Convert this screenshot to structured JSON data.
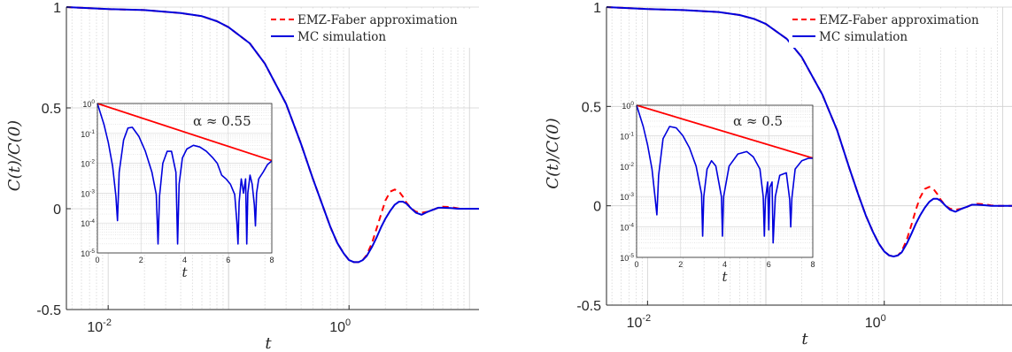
{
  "chart_data": [
    {
      "type": "line",
      "title": "",
      "xlabel": "t",
      "ylabel": "C(t)/C(0)",
      "xscale": "log",
      "xlim": [
        0.0045,
        12
      ],
      "ylim": [
        -0.5,
        1
      ],
      "x_ticks": [
        0.01,
        1
      ],
      "x_tick_labels": [
        "10",
        "-2",
        "10",
        "0"
      ],
      "y_ticks": [
        -0.5,
        0,
        0.5,
        1
      ],
      "y_tick_labels": [
        "-0.5",
        "0",
        "0.5",
        "1"
      ],
      "grid": true,
      "legend_position": "top-right",
      "series": [
        {
          "name": "EMZ-Faber approximation",
          "color": "#ff0000",
          "style": "dashed",
          "x": [
            0.0045,
            0.01,
            0.02,
            0.04,
            0.06,
            0.08,
            0.1,
            0.15,
            0.2,
            0.3,
            0.4,
            0.5,
            0.6,
            0.7,
            0.8,
            0.9,
            1.0,
            1.1,
            1.2,
            1.3,
            1.4,
            1.55,
            1.7,
            1.85,
            2.0,
            2.2,
            2.4,
            2.6,
            2.8,
            3.0,
            3.3,
            3.6,
            4.0,
            4.5,
            5.0,
            5.5,
            6.0,
            7.0,
            8.0,
            9.0,
            10.0,
            12.0
          ],
          "values": [
            1.0,
            0.99,
            0.985,
            0.97,
            0.955,
            0.93,
            0.9,
            0.82,
            0.72,
            0.52,
            0.32,
            0.15,
            0.02,
            -0.09,
            -0.17,
            -0.22,
            -0.255,
            -0.265,
            -0.265,
            -0.255,
            -0.23,
            -0.17,
            -0.095,
            -0.025,
            0.04,
            0.085,
            0.095,
            0.085,
            0.06,
            0.03,
            0.0,
            -0.015,
            -0.02,
            -0.015,
            -0.005,
            0.005,
            0.01,
            0.008,
            0.002,
            0.0,
            0.0,
            0.0
          ]
        },
        {
          "name": "MC simulation",
          "color": "#0000dd",
          "style": "solid",
          "x": [
            0.0045,
            0.01,
            0.02,
            0.04,
            0.06,
            0.08,
            0.1,
            0.15,
            0.2,
            0.3,
            0.4,
            0.5,
            0.6,
            0.7,
            0.8,
            0.9,
            1.0,
            1.1,
            1.2,
            1.3,
            1.4,
            1.55,
            1.7,
            1.85,
            2.0,
            2.2,
            2.4,
            2.6,
            2.8,
            3.0,
            3.3,
            3.6,
            4.0,
            4.5,
            5.0,
            5.5,
            6.0,
            7.0,
            8.0,
            9.0,
            10.0,
            12.0
          ],
          "values": [
            1.0,
            0.99,
            0.985,
            0.97,
            0.955,
            0.93,
            0.9,
            0.82,
            0.72,
            0.52,
            0.32,
            0.15,
            0.02,
            -0.09,
            -0.17,
            -0.22,
            -0.255,
            -0.265,
            -0.265,
            -0.255,
            -0.235,
            -0.19,
            -0.14,
            -0.09,
            -0.05,
            -0.01,
            0.02,
            0.035,
            0.035,
            0.025,
            0.0,
            -0.02,
            -0.03,
            -0.015,
            -0.005,
            0.005,
            0.005,
            0.003,
            0.0,
            0.0,
            0.0,
            0.0
          ]
        }
      ],
      "inset": {
        "type": "line",
        "xlabel": "t",
        "yscale": "log",
        "xlim": [
          0,
          8
        ],
        "ylim": [
          1e-05,
          1
        ],
        "x_ticks": [
          0,
          2,
          4,
          6,
          8
        ],
        "x_tick_labels": [
          "0",
          "2",
          "4",
          "6",
          "8"
        ],
        "y_ticks": [
          1e-05,
          0.0001,
          0.001,
          0.01,
          0.1,
          1
        ],
        "y_tick_labels": [
          [
            "10",
            "-5"
          ],
          [
            "10",
            "-4"
          ],
          [
            "10",
            "-3"
          ],
          [
            "10",
            "-2"
          ],
          [
            "10",
            "-1"
          ],
          [
            "10",
            "0"
          ]
        ],
        "annotation": "α ≈ 0.55",
        "fit_line": {
          "color": "#ff0000",
          "x": [
            0,
            8
          ],
          "values": [
            1.0,
            0.0123
          ]
        },
        "series": {
          "color": "#0000dd",
          "x": [
            0,
            0.3,
            0.5,
            0.7,
            0.85,
            0.92,
            1.0,
            1.2,
            1.4,
            1.6,
            1.9,
            2.2,
            2.5,
            2.7,
            2.78,
            2.85,
            3.0,
            3.2,
            3.4,
            3.6,
            3.68,
            3.75,
            3.9,
            4.1,
            4.4,
            4.7,
            5.0,
            5.3,
            5.5,
            5.7,
            5.9,
            6.1,
            6.3,
            6.4,
            6.45,
            6.5,
            6.6,
            6.7,
            6.8,
            6.85,
            6.9,
            7.0,
            7.1,
            7.2,
            7.25,
            7.3,
            7.4,
            7.6,
            7.8,
            8.0
          ],
          "values": [
            1.0,
            0.2,
            0.05,
            0.008,
            0.0008,
            0.00012,
            0.005,
            0.06,
            0.15,
            0.16,
            0.08,
            0.025,
            0.005,
            0.0009,
            2e-05,
            0.0008,
            0.01,
            0.025,
            0.025,
            0.005,
            2e-05,
            0.002,
            0.015,
            0.03,
            0.04,
            0.035,
            0.025,
            0.015,
            0.01,
            0.004,
            0.003,
            0.002,
            0.0009,
            0.0001,
            2e-05,
            0.0005,
            0.003,
            0.001,
            0.003,
            2e-05,
            0.001,
            0.004,
            0.002,
            0.0004,
            8e-05,
            0.001,
            0.003,
            0.005,
            0.009,
            0.012
          ]
        }
      }
    },
    {
      "type": "line",
      "title": "",
      "xlabel": "t",
      "ylabel": "C(t)/C(0)",
      "xscale": "log",
      "xlim": [
        0.0045,
        12
      ],
      "ylim": [
        -0.5,
        1
      ],
      "x_ticks": [
        0.01,
        1
      ],
      "x_tick_labels": [
        "10",
        "-2",
        "10",
        "0"
      ],
      "y_ticks": [
        -0.5,
        0,
        0.5,
        1
      ],
      "y_tick_labels": [
        "-0.5",
        "0",
        "0.5",
        "1"
      ],
      "grid": true,
      "legend_position": "top-right",
      "series": [
        {
          "name": "EMZ-Faber approximation",
          "color": "#ff0000",
          "style": "dashed",
          "x": [
            0.0045,
            0.01,
            0.02,
            0.04,
            0.06,
            0.08,
            0.1,
            0.15,
            0.2,
            0.3,
            0.4,
            0.5,
            0.6,
            0.7,
            0.8,
            0.9,
            1.0,
            1.1,
            1.2,
            1.3,
            1.4,
            1.55,
            1.7,
            1.85,
            2.0,
            2.2,
            2.4,
            2.6,
            2.8,
            3.0,
            3.3,
            3.6,
            4.0,
            4.5,
            5.0,
            5.5,
            6.0,
            7.0,
            8.0,
            9.0,
            10.0,
            12.0
          ],
          "values": [
            1.0,
            0.99,
            0.985,
            0.975,
            0.96,
            0.94,
            0.915,
            0.84,
            0.75,
            0.56,
            0.38,
            0.2,
            0.06,
            -0.05,
            -0.13,
            -0.19,
            -0.23,
            -0.25,
            -0.255,
            -0.25,
            -0.23,
            -0.17,
            -0.095,
            -0.02,
            0.04,
            0.085,
            0.095,
            0.085,
            0.06,
            0.03,
            0.0,
            -0.015,
            -0.02,
            -0.015,
            -0.005,
            0.005,
            0.01,
            0.008,
            0.002,
            0.0,
            0.0,
            0.0
          ]
        },
        {
          "name": "MC simulation",
          "color": "#0000dd",
          "style": "solid",
          "x": [
            0.0045,
            0.01,
            0.02,
            0.04,
            0.06,
            0.08,
            0.1,
            0.15,
            0.2,
            0.3,
            0.4,
            0.5,
            0.6,
            0.7,
            0.8,
            0.9,
            1.0,
            1.1,
            1.2,
            1.3,
            1.4,
            1.55,
            1.7,
            1.85,
            2.0,
            2.2,
            2.4,
            2.6,
            2.8,
            3.0,
            3.3,
            3.6,
            4.0,
            4.5,
            5.0,
            5.5,
            6.0,
            7.0,
            8.0,
            9.0,
            10.0,
            12.0
          ],
          "values": [
            1.0,
            0.99,
            0.985,
            0.975,
            0.96,
            0.94,
            0.915,
            0.84,
            0.75,
            0.56,
            0.38,
            0.2,
            0.06,
            -0.05,
            -0.13,
            -0.19,
            -0.23,
            -0.25,
            -0.255,
            -0.25,
            -0.235,
            -0.19,
            -0.14,
            -0.09,
            -0.05,
            -0.01,
            0.02,
            0.035,
            0.035,
            0.025,
            0.0,
            -0.02,
            -0.03,
            -0.015,
            -0.005,
            0.005,
            0.005,
            0.003,
            0.0,
            0.0,
            0.0,
            0.0
          ]
        }
      ],
      "inset": {
        "type": "line",
        "xlabel": "t",
        "yscale": "log",
        "xlim": [
          0,
          8
        ],
        "ylim": [
          1e-05,
          1
        ],
        "x_ticks": [
          0,
          2,
          4,
          6,
          8
        ],
        "x_tick_labels": [
          "0",
          "2",
          "4",
          "6",
          "8"
        ],
        "y_ticks": [
          1e-05,
          0.0001,
          0.001,
          0.01,
          0.1,
          1
        ],
        "y_tick_labels": [
          [
            "10",
            "-5"
          ],
          [
            "10",
            "-4"
          ],
          [
            "10",
            "-3"
          ],
          [
            "10",
            "-2"
          ],
          [
            "10",
            "-1"
          ],
          [
            "10",
            "0"
          ]
        ],
        "annotation": "α ≈ 0.5",
        "fit_line": {
          "color": "#ff0000",
          "x": [
            0,
            8
          ],
          "values": [
            1.0,
            0.0183
          ]
        },
        "series": {
          "color": "#0000dd",
          "x": [
            0,
            0.3,
            0.5,
            0.7,
            0.85,
            0.92,
            1.0,
            1.2,
            1.5,
            1.8,
            2.1,
            2.4,
            2.7,
            2.95,
            3.0,
            3.05,
            3.2,
            3.4,
            3.6,
            3.85,
            3.9,
            3.95,
            4.2,
            4.6,
            5.0,
            5.3,
            5.6,
            5.75,
            5.8,
            5.85,
            5.95,
            6.0,
            6.05,
            6.15,
            6.2,
            6.3,
            6.5,
            6.8,
            6.95,
            7.0,
            7.05,
            7.2,
            7.5,
            7.8,
            8.0
          ],
          "values": [
            1.0,
            0.2,
            0.05,
            0.008,
            0.0008,
            0.00025,
            0.005,
            0.08,
            0.2,
            0.18,
            0.1,
            0.04,
            0.01,
            0.0012,
            5e-05,
            0.001,
            0.008,
            0.015,
            0.01,
            0.001,
            5e-05,
            0.001,
            0.01,
            0.025,
            0.03,
            0.02,
            0.008,
            0.001,
            5e-05,
            0.0008,
            0.003,
            8e-05,
            0.002,
            0.003,
            3e-05,
            0.001,
            0.005,
            0.006,
            0.0008,
            0.0001,
            0.0009,
            0.008,
            0.015,
            0.018,
            0.018
          ]
        }
      }
    }
  ]
}
